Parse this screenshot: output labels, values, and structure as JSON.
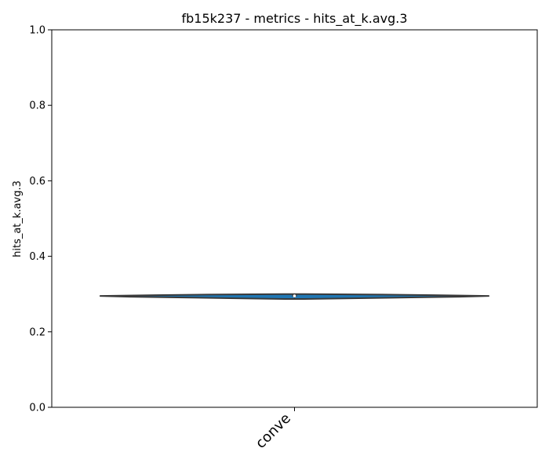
{
  "chart_data": {
    "type": "violin",
    "title": "fb15k237 - metrics - hits_at_k.avg.3",
    "ylabel": "hits_at_k.avg.3",
    "xlabel": "",
    "ylim": [
      0,
      1
    ],
    "yticks": [
      0.0,
      0.2,
      0.4,
      0.6,
      0.8,
      1.0
    ],
    "ytick_labels": [
      "0.0",
      "0.2",
      "0.4",
      "0.6",
      "0.8",
      "1.0"
    ],
    "categories": [
      "conve"
    ],
    "violins": [
      {
        "category": "conve",
        "color": "#1f77b4",
        "min": 0.287,
        "max": 0.3,
        "q1": 0.2935,
        "median": 0.295,
        "q3": 0.2985,
        "density": [
          {
            "y": 0.287,
            "w": 0.05
          },
          {
            "y": 0.289,
            "w": 0.33
          },
          {
            "y": 0.291,
            "w": 0.6
          },
          {
            "y": 0.293,
            "w": 0.85
          },
          {
            "y": 0.295,
            "w": 1.0
          },
          {
            "y": 0.297,
            "w": 0.72
          },
          {
            "y": 0.2985,
            "w": 0.45
          },
          {
            "y": 0.3,
            "w": 0.05
          }
        ]
      }
    ],
    "grid": false,
    "legend": "none"
  }
}
